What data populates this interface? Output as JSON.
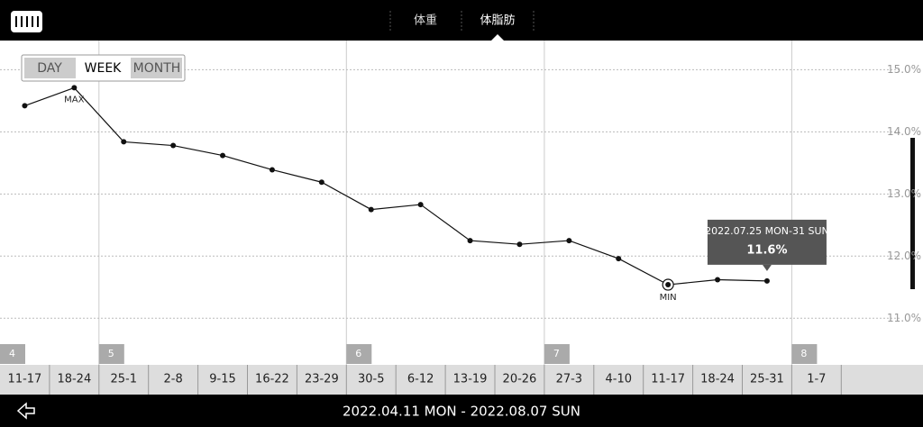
{
  "header": {
    "tabs": [
      "体重",
      "体脂肪"
    ]
  },
  "range_buttons": [
    "DAY",
    "WEEK",
    "MONTH"
  ],
  "footer": {
    "date_range": "2022.04.11 MON - 2022.08.07 SUN"
  },
  "chart_data": {
    "type": "line",
    "categories": [
      "11-17",
      "18-24",
      "25-1",
      "2-8",
      "9-15",
      "16-22",
      "23-29",
      "30-5",
      "6-12",
      "13-19",
      "20-26",
      "27-3",
      "4-10",
      "11-17",
      "18-24",
      "25-31",
      "1-7"
    ],
    "values": [
      14.42,
      14.71,
      13.84,
      13.78,
      13.62,
      13.39,
      13.19,
      12.75,
      12.83,
      12.25,
      12.19,
      12.25,
      11.96,
      11.54,
      11.62,
      11.6,
      null
    ],
    "value_labels": [
      null,
      null,
      null,
      null,
      null,
      null,
      null,
      null,
      null,
      null,
      null,
      null,
      null,
      null,
      null,
      "11.6%",
      null
    ],
    "color": "#111111",
    "ylim": [
      10.25,
      15.47
    ],
    "yticks": [
      {
        "value": 11,
        "label": "11.0%"
      },
      {
        "value": 12,
        "label": "12.0%"
      },
      {
        "value": 13,
        "label": "13.0%"
      },
      {
        "value": 14,
        "label": "14.0%"
      },
      {
        "value": 15,
        "label": "15.0%"
      }
    ],
    "grid": true,
    "month_labels": [
      "4",
      "5",
      "6",
      "7",
      "8"
    ],
    "annotations": {
      "max": "MAX",
      "min": "MIN"
    },
    "tooltip_title": "2022.07.25 MON-31 SUN"
  }
}
